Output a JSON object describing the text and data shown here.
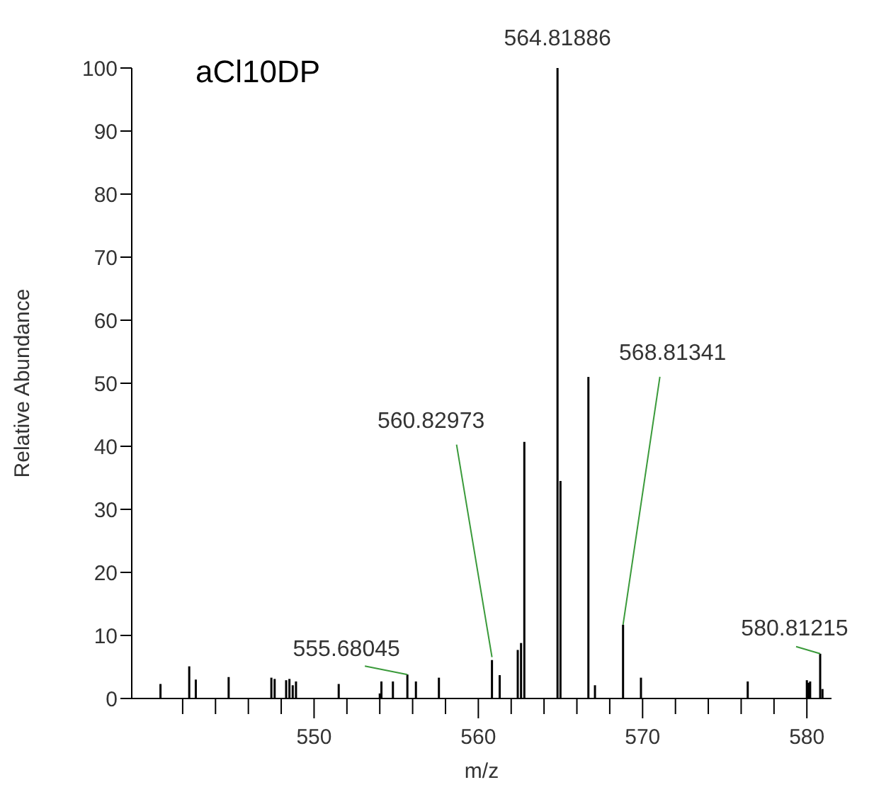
{
  "chart_data": {
    "type": "bar",
    "title": "aCl10DP",
    "xlabel": "m/z",
    "ylabel": "Relative Abundance",
    "color": "#000000",
    "x": [
      540.65,
      542.4,
      542.8,
      544.8,
      547.4,
      547.6,
      548.3,
      548.5,
      548.7,
      548.9,
      551.5,
      554.0,
      554.1,
      554.8,
      555.68,
      556.2,
      557.6,
      560.83,
      561.3,
      562.4,
      562.6,
      562.8,
      564.82,
      565.0,
      566.7,
      567.1,
      568.81,
      569.9,
      576.4,
      580.0,
      580.1,
      580.2,
      580.81,
      580.95
    ],
    "values": [
      2.3,
      5.1,
      3.0,
      3.4,
      3.3,
      3.1,
      2.9,
      3.1,
      2.1,
      2.7,
      2.3,
      0.8,
      2.7,
      2.7,
      3.8,
      2.7,
      3.3,
      6.1,
      3.7,
      7.7,
      8.8,
      40.7,
      100,
      34.5,
      51.0,
      2.1,
      11.7,
      3.3,
      2.7,
      2.9,
      2.5,
      2.7,
      7.1,
      1.5
    ],
    "xlim": [
      538.9,
      581.5
    ],
    "xticks": [
      {
        "value": 542,
        "label": null
      },
      {
        "value": 544,
        "label": null
      },
      {
        "value": 546,
        "label": null
      },
      {
        "value": 548,
        "label": null
      },
      550,
      {
        "value": 552,
        "label": null
      },
      {
        "value": 554,
        "label": null
      },
      {
        "value": 556,
        "label": null
      },
      {
        "value": 558,
        "label": null
      },
      560,
      {
        "value": 562,
        "label": null
      },
      {
        "value": 564,
        "label": null
      },
      {
        "value": 566,
        "label": null
      },
      {
        "value": 568,
        "label": null
      },
      570,
      {
        "value": 572,
        "label": null
      },
      {
        "value": 574,
        "label": null
      },
      {
        "value": 576,
        "label": null
      },
      {
        "value": 578,
        "label": null
      },
      580
    ],
    "ylim": [
      0,
      100
    ],
    "yticks": [
      0,
      10,
      20,
      30,
      40,
      50,
      60,
      70,
      80,
      90,
      100
    ],
    "grid": false,
    "legend": false,
    "annotations": [
      {
        "text": "564.81886",
        "x": 564.82,
        "y": 100
      },
      {
        "text": "560.82973",
        "x": 560.83,
        "y": 6.1
      },
      {
        "text": "568.81341",
        "x": 568.81,
        "y": 11.7
      },
      {
        "text": "555.68045",
        "x": 555.68,
        "y": 3.8
      },
      {
        "text": "580.81215",
        "x": 580.81,
        "y": 7.1
      }
    ]
  }
}
